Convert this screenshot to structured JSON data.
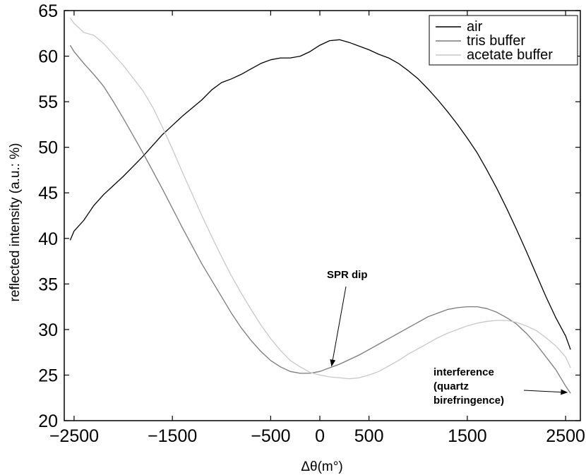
{
  "chart_data": {
    "type": "line",
    "title": "",
    "xlabel": "Δθ(m°)",
    "ylabel": "reflected intensity (a.u.: %)",
    "xlim": [
      -2600,
      2650
    ],
    "ylim": [
      20,
      65
    ],
    "xticks": [
      -2500,
      -1500,
      -500,
      0,
      500,
      1500,
      2500
    ],
    "xtick_labels": [
      "−2500",
      "−1500",
      "−500",
      "0",
      "500",
      "1500",
      "2500"
    ],
    "yticks": [
      20,
      25,
      30,
      35,
      40,
      45,
      50,
      55,
      60,
      65
    ],
    "ytick_labels": [
      "20",
      "25",
      "30",
      "35",
      "40",
      "45",
      "50",
      "55",
      "60",
      "65"
    ],
    "grid": false,
    "legend_position": "top-right",
    "series": [
      {
        "name": "air",
        "color": "#000000",
        "x": [
          -2540,
          -2500,
          -2400,
          -2300,
          -2200,
          -2100,
          -2000,
          -1900,
          -1800,
          -1700,
          -1600,
          -1500,
          -1400,
          -1300,
          -1200,
          -1100,
          -1000,
          -900,
          -800,
          -700,
          -600,
          -500,
          -400,
          -300,
          -200,
          -100,
          0,
          100,
          200,
          300,
          400,
          500,
          600,
          700,
          800,
          900,
          1000,
          1100,
          1200,
          1300,
          1400,
          1500,
          1600,
          1700,
          1800,
          1900,
          2000,
          2100,
          2200,
          2300,
          2400,
          2500,
          2550
        ],
        "y": [
          39.8,
          40.8,
          42.0,
          43.6,
          44.8,
          45.8,
          46.8,
          47.9,
          49.0,
          50.2,
          51.4,
          52.4,
          53.4,
          54.3,
          55.2,
          56.3,
          57.1,
          57.5,
          58.0,
          58.6,
          59.2,
          59.6,
          59.8,
          59.8,
          60.0,
          60.5,
          61.2,
          61.7,
          61.8,
          61.5,
          61.1,
          60.7,
          60.2,
          59.8,
          59.2,
          58.4,
          57.5,
          56.4,
          55.2,
          53.9,
          52.5,
          51.0,
          49.4,
          47.5,
          45.5,
          43.3,
          41.0,
          38.6,
          36.1,
          33.6,
          31.3,
          29.3,
          27.8
        ]
      },
      {
        "name": "tris buffer",
        "color": "#7a7a7a",
        "x": [
          -2540,
          -2500,
          -2400,
          -2300,
          -2200,
          -2100,
          -2000,
          -1900,
          -1800,
          -1700,
          -1600,
          -1500,
          -1400,
          -1300,
          -1200,
          -1100,
          -1000,
          -900,
          -800,
          -700,
          -600,
          -500,
          -400,
          -300,
          -200,
          -100,
          0,
          100,
          200,
          300,
          400,
          500,
          600,
          700,
          800,
          900,
          1000,
          1100,
          1200,
          1300,
          1400,
          1500,
          1600,
          1700,
          1800,
          1900,
          2000,
          2100,
          2200,
          2300,
          2400,
          2500,
          2550
        ],
        "y": [
          61.2,
          60.5,
          59.2,
          58.0,
          56.7,
          55.0,
          53.2,
          51.3,
          49.4,
          47.4,
          45.4,
          43.3,
          41.2,
          39.2,
          37.2,
          35.4,
          33.6,
          31.8,
          30.2,
          28.8,
          27.6,
          26.6,
          25.9,
          25.4,
          25.2,
          25.2,
          25.4,
          25.8,
          26.2,
          26.7,
          27.2,
          27.8,
          28.4,
          29.0,
          29.6,
          30.2,
          30.8,
          31.4,
          31.8,
          32.2,
          32.4,
          32.5,
          32.5,
          32.3,
          31.9,
          31.3,
          30.6,
          29.6,
          28.4,
          27.0,
          25.6,
          23.8,
          23.0
        ]
      },
      {
        "name": "acetate buffer",
        "color": "#c8c8c8",
        "x": [
          -2540,
          -2500,
          -2400,
          -2300,
          -2200,
          -2100,
          -2000,
          -1900,
          -1800,
          -1700,
          -1600,
          -1500,
          -1400,
          -1300,
          -1200,
          -1100,
          -1000,
          -900,
          -800,
          -700,
          -600,
          -500,
          -400,
          -300,
          -200,
          -100,
          0,
          100,
          200,
          300,
          400,
          500,
          600,
          700,
          800,
          900,
          1000,
          1100,
          1200,
          1300,
          1400,
          1500,
          1600,
          1700,
          1800,
          1900,
          2000,
          2100,
          2200,
          2300,
          2400,
          2500,
          2550
        ],
        "y": [
          64.2,
          63.6,
          62.6,
          62.3,
          61.4,
          60.2,
          59.0,
          57.6,
          56.2,
          54.4,
          52.2,
          49.8,
          47.3,
          44.9,
          42.5,
          40.2,
          38.0,
          35.9,
          34.0,
          32.2,
          30.5,
          29.0,
          27.7,
          26.6,
          25.9,
          25.3,
          25.0,
          24.8,
          24.7,
          24.6,
          24.7,
          25.0,
          25.4,
          26.0,
          26.6,
          27.3,
          27.9,
          28.5,
          29.1,
          29.6,
          30.0,
          30.4,
          30.7,
          30.9,
          31.0,
          31.0,
          30.8,
          30.4,
          29.9,
          29.1,
          28.2,
          27.0,
          25.8
        ]
      }
    ],
    "annotations": [
      {
        "id": "spr",
        "lines": [
          "SPR dip"
        ],
        "point_to": [
          120,
          26.0
        ]
      },
      {
        "id": "interference",
        "lines": [
          "interference",
          "(quartz",
          "birefringence)"
        ],
        "point_to": [
          2530,
          23.1
        ]
      }
    ]
  }
}
